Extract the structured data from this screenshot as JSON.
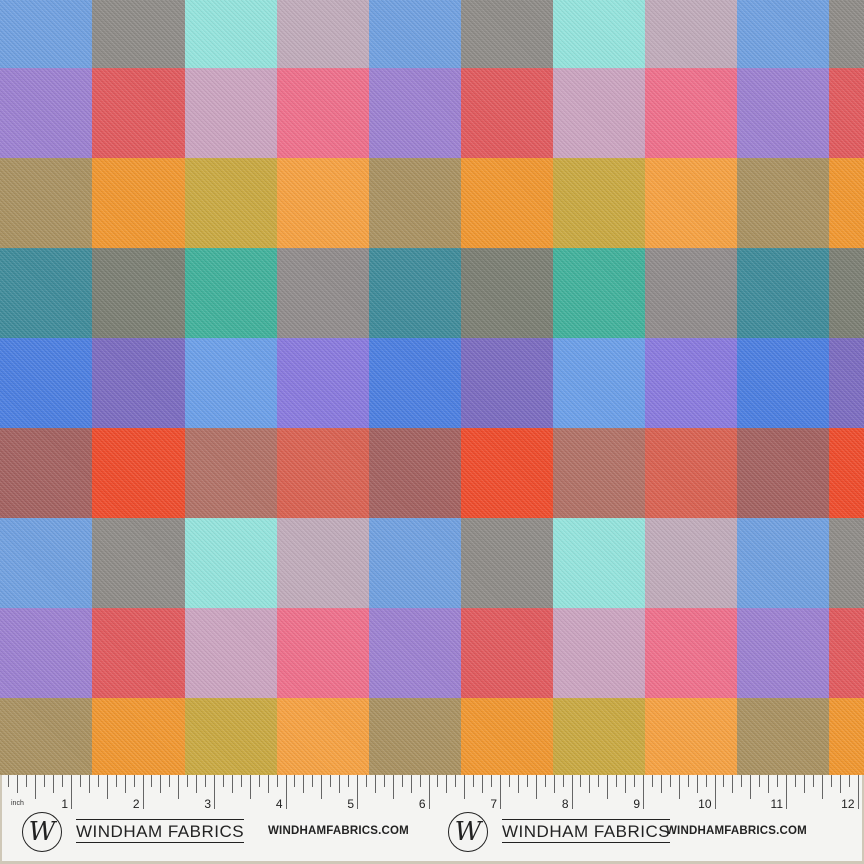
{
  "fabric": {
    "rows_colors": [
      [
        "#6f9fdf",
        "#8d8a86",
        "#93e3dc",
        "#bfaab9"
      ],
      [
        "#9b7fd0",
        "#e0585c",
        "#caa3bf",
        "#ee6e8a"
      ],
      [
        "#a89060",
        "#f0962e",
        "#c8a840",
        "#f5a040"
      ],
      [
        "#3d8a99",
        "#7a7d72",
        "#3fb09a",
        "#8f8a8a"
      ],
      [
        "#4a7de0",
        "#7a6abf",
        "#6a9ee8",
        "#8878dd"
      ],
      [
        "#a2605f",
        "#ee4a2a",
        "#b07065",
        "#d86050"
      ]
    ]
  },
  "ruler": {
    "unit": "inch",
    "labels": [
      "1",
      "2",
      "3",
      "4",
      "5",
      "6",
      "7",
      "8",
      "9",
      "10",
      "11",
      "12"
    ]
  },
  "branding": {
    "logo_letter": "W",
    "brand": "WINDHAM FABRICS",
    "url": "WINDHAMFABRICS.COM"
  }
}
